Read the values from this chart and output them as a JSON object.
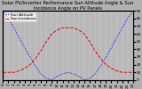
{
  "title": "Solar PV/Inverter Performance Sun Altitude Angle & Sun Incidence Angle on PV Panels",
  "legend1": "Sun Altitude",
  "legend2": "Sun Incidence",
  "x_values": [
    0,
    1,
    2,
    3,
    4,
    5,
    6,
    7,
    8,
    9,
    10,
    11,
    12,
    13,
    14,
    15,
    16,
    17,
    18,
    19,
    20,
    21,
    22,
    23,
    24
  ],
  "y_altitude": [
    90,
    80,
    68,
    55,
    42,
    30,
    18,
    8,
    2,
    0,
    5,
    8,
    10,
    8,
    5,
    0,
    2,
    8,
    18,
    30,
    42,
    55,
    68,
    80,
    90
  ],
  "y_incidence": [
    10,
    10,
    10,
    12,
    15,
    20,
    28,
    38,
    50,
    60,
    65,
    68,
    68,
    68,
    65,
    60,
    50,
    38,
    28,
    20,
    15,
    12,
    10,
    10,
    10
  ],
  "x_tick_labels": [
    "0",
    "1",
    "2",
    "3",
    "4",
    "5",
    "6",
    "7",
    "8",
    "9",
    "10",
    "11",
    "12",
    "13",
    "14",
    "15",
    "16",
    "17",
    "18",
    "19",
    "20",
    "21",
    "22",
    "23",
    "24"
  ],
  "x_ticks": [
    0,
    1,
    2,
    3,
    4,
    5,
    6,
    7,
    8,
    9,
    10,
    11,
    12,
    13,
    14,
    15,
    16,
    17,
    18,
    19,
    20,
    21,
    22,
    23,
    24
  ],
  "y_right_ticks": [
    0,
    10,
    20,
    30,
    40,
    50,
    60,
    70,
    80,
    90
  ],
  "y_right_labels": [
    "0",
    "10",
    "20",
    "30",
    "40",
    "50",
    "60",
    "70",
    "80",
    "90"
  ],
  "ylim": [
    0,
    90
  ],
  "xlim": [
    0,
    24
  ],
  "color_altitude": "#0000ff",
  "color_incidence": "#ff0000",
  "bg_color": "#b0b0b0",
  "plot_bg": "#b8b8b8",
  "grid_color": "#d8d8d8",
  "title_fontsize": 3.8,
  "legend_fontsize": 3.0,
  "tick_fontsize": 3.0,
  "line_width": 0.7
}
